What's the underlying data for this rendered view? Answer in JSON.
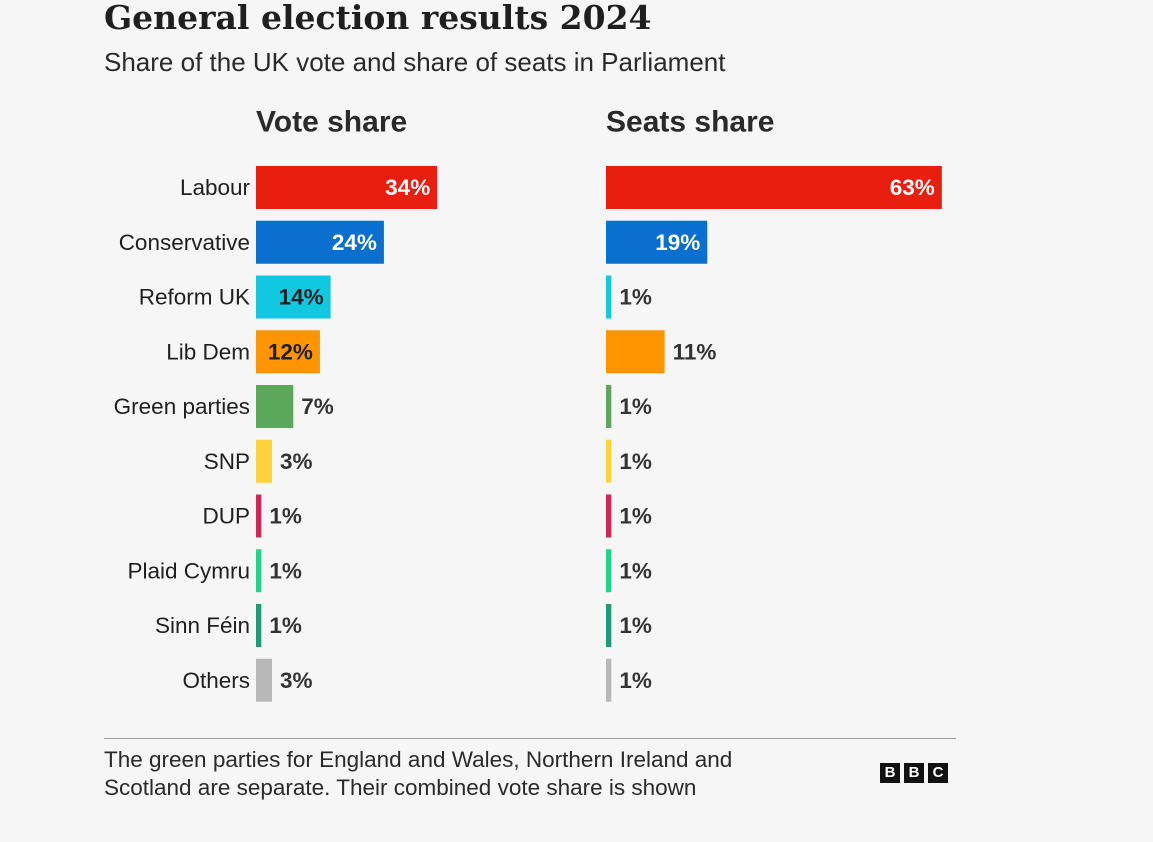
{
  "header": {
    "title": "General election results 2024",
    "subtitle": "Share of the UK vote and share of seats in Parliament"
  },
  "chart_data": {
    "type": "bar",
    "orientation": "horizontal",
    "categories": [
      "Labour",
      "Conservative",
      "Reform UK",
      "Lib Dem",
      "Green parties",
      "SNP",
      "DUP",
      "Plaid Cymru",
      "Sinn Féin",
      "Others"
    ],
    "colors": [
      "#e81e0f",
      "#0a6fce",
      "#12c8e0",
      "#ff9500",
      "#5ba85a",
      "#fdd33b",
      "#d0275a",
      "#20d48a",
      "#209b78",
      "#b8b8b8"
    ],
    "value_unit": "%",
    "panels": [
      {
        "title": "Vote share",
        "values": [
          34,
          24,
          14,
          12,
          7,
          3,
          1,
          1,
          1,
          3
        ],
        "labels": [
          "34%",
          "24%",
          "14%",
          "12%",
          "7%",
          "3%",
          "1%",
          "1%",
          "1%",
          "3%"
        ]
      },
      {
        "title": "Seats share",
        "values": [
          63,
          19,
          1,
          11,
          1,
          1,
          1,
          1,
          1,
          1
        ],
        "labels": [
          "63%",
          "19%",
          "1%",
          "11%",
          "1%",
          "1%",
          "1%",
          "1%",
          "1%",
          "1%"
        ]
      }
    ],
    "grid": false,
    "legend": "none"
  },
  "footer": {
    "note": "The green parties for England and Wales, Northern Ireland and Scotland are separate. Their combined vote share is shown",
    "logo_letters": [
      "B",
      "B",
      "C"
    ]
  }
}
